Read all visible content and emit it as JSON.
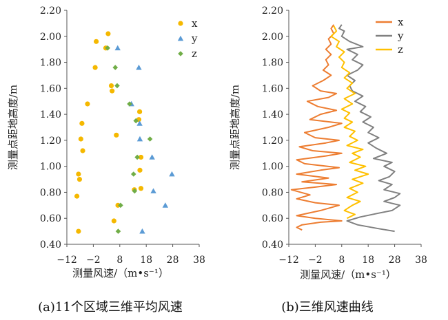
{
  "colors": {
    "x": "#F5B800",
    "y": "#5B9BD5",
    "z": "#70AD47",
    "x_line": "#ED7D31",
    "y_line": "#808080",
    "z_line": "#FFC000"
  },
  "captions": {
    "a": "(a)11个区域三维平均风速",
    "b": "(b)三维风速曲线"
  },
  "chart_data": [
    {
      "type": "scatter",
      "xlabel": "测量风速/（m•s⁻¹）",
      "ylabel": "测量点距地高度/m",
      "xlim": [
        -12,
        38
      ],
      "ylim": [
        0.4,
        2.2
      ],
      "x_ticks": [
        "-12",
        "-2",
        "8",
        "18",
        "28",
        "38"
      ],
      "y_ticks": [
        "0.40",
        "0.60",
        "0.80",
        "1.00",
        "1.20",
        "1.40",
        "1.60",
        "1.80",
        "2.00",
        "2.20"
      ],
      "legend": {
        "position": "top-right",
        "entries": [
          "x",
          "y",
          "z"
        ]
      },
      "series": [
        {
          "name": "x",
          "marker": "circle",
          "points": [
            [
              3.6,
              2.02
            ],
            [
              -0.9,
              1.96
            ],
            [
              2.7,
              1.91
            ],
            [
              -1.3,
              1.76
            ],
            [
              4.8,
              1.62
            ],
            [
              5.1,
              1.58
            ],
            [
              -4.2,
              1.48
            ],
            [
              15.5,
              1.42
            ],
            [
              15.2,
              1.36
            ],
            [
              -6.3,
              1.33
            ],
            [
              6.7,
              1.24
            ],
            [
              -6.7,
              1.21
            ],
            [
              -6.0,
              1.12
            ],
            [
              16.0,
              1.07
            ],
            [
              15.6,
              0.97
            ],
            [
              -7.6,
              0.94
            ],
            [
              -7.2,
              0.9
            ],
            [
              16.0,
              0.83
            ],
            [
              13.5,
              0.82
            ],
            [
              -8.2,
              0.77
            ],
            [
              7.3,
              0.7
            ],
            [
              5.8,
              0.58
            ],
            [
              -7.6,
              0.5
            ]
          ]
        },
        {
          "name": "y",
          "marker": "triangle",
          "points": [
            [
              7.2,
              1.91
            ],
            [
              15.2,
              1.76
            ],
            [
              12.4,
              1.48
            ],
            [
              15.5,
              1.33
            ],
            [
              15.6,
              1.21
            ],
            [
              20.2,
              1.07
            ],
            [
              27.7,
              0.94
            ],
            [
              20.7,
              0.81
            ],
            [
              25.2,
              0.7
            ],
            [
              16.5,
              0.5
            ]
          ]
        },
        {
          "name": "z",
          "marker": "diamond",
          "points": [
            [
              3.4,
              1.91
            ],
            [
              6.3,
              1.76
            ],
            [
              7.0,
              1.62
            ],
            [
              11.7,
              1.48
            ],
            [
              14.1,
              1.35
            ],
            [
              19.4,
              1.21
            ],
            [
              14.6,
              1.07
            ],
            [
              13.2,
              0.94
            ],
            [
              13.6,
              0.81
            ],
            [
              8.3,
              0.7
            ],
            [
              7.4,
              0.5
            ]
          ]
        }
      ]
    },
    {
      "type": "line",
      "xlabel": "测量风速/（m•s⁻¹）",
      "ylabel": "测量点距地高度/m",
      "xlim": [
        -12,
        38
      ],
      "ylim": [
        0.4,
        2.2
      ],
      "x_ticks": [
        "-12",
        "-2",
        "8",
        "18",
        "28",
        "38"
      ],
      "y_ticks": [
        "0.40",
        "0.60",
        "0.80",
        "1.00",
        "1.20",
        "1.40",
        "1.60",
        "1.80",
        "2.00",
        "2.20"
      ],
      "legend": {
        "position": "top-right",
        "entries": [
          "x",
          "y",
          "z"
        ]
      },
      "series": [
        {
          "name": "x",
          "points": [
            [
              -7,
              0.51
            ],
            [
              -9,
              0.53
            ],
            [
              -7,
              0.55
            ],
            [
              0,
              0.57
            ],
            [
              8,
              0.58
            ],
            [
              -2,
              0.6
            ],
            [
              -9,
              0.62
            ],
            [
              0,
              0.66
            ],
            [
              7,
              0.7
            ],
            [
              -2,
              0.72
            ],
            [
              -9,
              0.75
            ],
            [
              -4,
              0.78
            ],
            [
              -11,
              0.82
            ],
            [
              -2,
              0.84
            ],
            [
              6,
              0.86
            ],
            [
              -7,
              0.88
            ],
            [
              3,
              0.91
            ],
            [
              -9,
              0.94
            ],
            [
              0,
              0.97
            ],
            [
              7,
              0.99
            ],
            [
              -6,
              1.02
            ],
            [
              -9,
              1.05
            ],
            [
              2,
              1.08
            ],
            [
              8,
              1.1
            ],
            [
              -3,
              1.12
            ],
            [
              -8,
              1.15
            ],
            [
              2,
              1.18
            ],
            [
              7,
              1.2
            ],
            [
              -2,
              1.22
            ],
            [
              -6,
              1.26
            ],
            [
              3,
              1.3
            ],
            [
              8,
              1.33
            ],
            [
              -4,
              1.36
            ],
            [
              0,
              1.4
            ],
            [
              6,
              1.43
            ],
            [
              -1,
              1.46
            ],
            [
              -5,
              1.5
            ],
            [
              3,
              1.53
            ],
            [
              6,
              1.56
            ],
            [
              0,
              1.58
            ],
            [
              -3,
              1.62
            ],
            [
              1,
              1.66
            ],
            [
              4,
              1.7
            ],
            [
              1,
              1.74
            ],
            [
              3,
              1.78
            ],
            [
              2,
              1.82
            ],
            [
              4,
              1.86
            ],
            [
              2,
              1.9
            ],
            [
              4,
              1.94
            ],
            [
              3,
              1.98
            ],
            [
              5,
              2.02
            ],
            [
              4,
              2.06
            ],
            [
              5,
              2.09
            ]
          ]
        },
        {
          "name": "y",
          "points": [
            [
              28,
              0.5
            ],
            [
              22,
              0.52
            ],
            [
              14,
              0.55
            ],
            [
              10,
              0.58
            ],
            [
              15,
              0.61
            ],
            [
              22,
              0.64
            ],
            [
              27,
              0.66
            ],
            [
              30,
              0.7
            ],
            [
              24,
              0.73
            ],
            [
              28,
              0.76
            ],
            [
              30,
              0.79
            ],
            [
              24,
              0.82
            ],
            [
              27,
              0.86
            ],
            [
              22,
              0.89
            ],
            [
              26,
              0.92
            ],
            [
              28,
              0.96
            ],
            [
              24,
              1.0
            ],
            [
              27,
              1.03
            ],
            [
              20,
              1.06
            ],
            [
              25,
              1.1
            ],
            [
              21,
              1.14
            ],
            [
              18,
              1.18
            ],
            [
              22,
              1.22
            ],
            [
              18,
              1.26
            ],
            [
              20,
              1.3
            ],
            [
              16,
              1.34
            ],
            [
              19,
              1.38
            ],
            [
              15,
              1.42
            ],
            [
              17,
              1.46
            ],
            [
              13,
              1.5
            ],
            [
              16,
              1.54
            ],
            [
              12,
              1.58
            ],
            [
              11,
              1.62
            ],
            [
              13,
              1.66
            ],
            [
              10,
              1.7
            ],
            [
              14,
              1.74
            ],
            [
              16,
              1.78
            ],
            [
              12,
              1.82
            ],
            [
              14,
              1.86
            ],
            [
              10,
              1.9
            ],
            [
              16,
              1.92
            ],
            [
              11,
              1.96
            ],
            [
              8,
              2.0
            ],
            [
              9,
              2.04
            ],
            [
              7,
              2.06
            ],
            [
              8,
              2.09
            ]
          ]
        },
        {
          "name": "z",
          "points": [
            [
              10,
              0.6
            ],
            [
              13,
              0.63
            ],
            [
              9,
              0.66
            ],
            [
              12,
              0.7
            ],
            [
              15,
              0.73
            ],
            [
              10,
              0.76
            ],
            [
              14,
              0.8
            ],
            [
              11,
              0.83
            ],
            [
              16,
              0.87
            ],
            [
              12,
              0.9
            ],
            [
              18,
              0.94
            ],
            [
              13,
              0.97
            ],
            [
              17,
              1.0
            ],
            [
              11,
              1.03
            ],
            [
              15,
              1.07
            ],
            [
              12,
              1.1
            ],
            [
              16,
              1.13
            ],
            [
              10,
              1.16
            ],
            [
              14,
              1.2
            ],
            [
              11,
              1.23
            ],
            [
              13,
              1.27
            ],
            [
              9,
              1.3
            ],
            [
              12,
              1.34
            ],
            [
              9,
              1.37
            ],
            [
              11,
              1.41
            ],
            [
              8,
              1.44
            ],
            [
              12,
              1.48
            ],
            [
              9,
              1.52
            ],
            [
              13,
              1.56
            ],
            [
              10,
              1.6
            ],
            [
              12,
              1.64
            ],
            [
              9,
              1.68
            ],
            [
              11,
              1.72
            ],
            [
              8,
              1.76
            ],
            [
              9,
              1.8
            ],
            [
              7,
              1.84
            ],
            [
              9,
              1.88
            ],
            [
              6,
              1.92
            ],
            [
              7,
              1.96
            ],
            [
              4,
              2.0
            ],
            [
              6,
              2.04
            ],
            [
              5,
              2.08
            ]
          ]
        }
      ]
    }
  ]
}
